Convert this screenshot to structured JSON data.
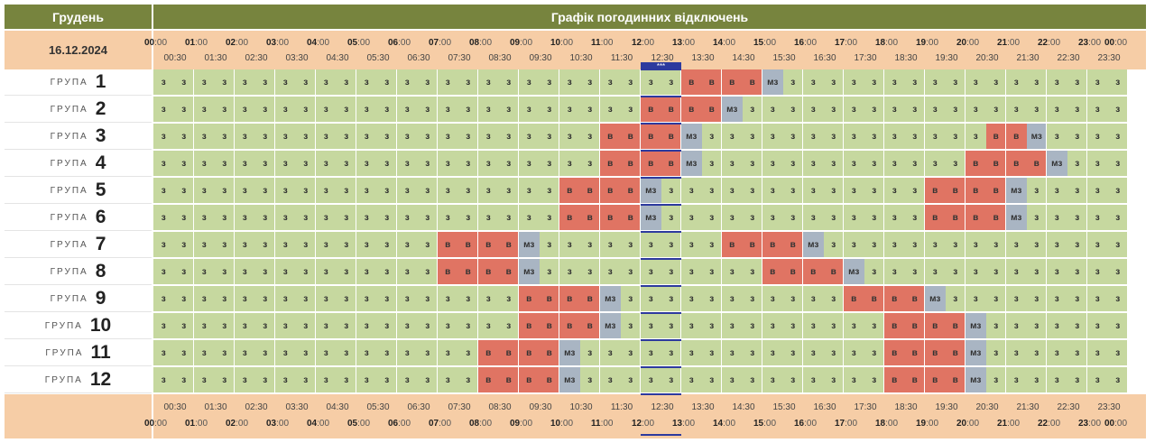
{
  "header": {
    "month": "Грудень",
    "title": "Графік погодинних відключень",
    "date": "16.12.2024"
  },
  "group_word": "ГРУПА",
  "hours": [
    "00",
    "01",
    "02",
    "03",
    "04",
    "05",
    "06",
    "07",
    "08",
    "09",
    "10",
    "11",
    "12",
    "13",
    "14",
    "15",
    "16",
    "17",
    "18",
    "19",
    "20",
    "21",
    "22",
    "23",
    "00"
  ],
  "hour_suffix": ":00",
  "half_labels": [
    "00:30",
    "01:30",
    "02:30",
    "03:30",
    "04:30",
    "05:30",
    "06:30",
    "07:30",
    "08:30",
    "09:30",
    "10:30",
    "11:30",
    "12:30",
    "13:30",
    "14:30",
    "15:30",
    "16:30",
    "17:30",
    "18:30",
    "19:30",
    "20:30",
    "21:30",
    "22:30",
    "23:30"
  ],
  "status_text": {
    "z": "з",
    "v": "в",
    "m": "мз"
  },
  "now_marker": {
    "label": "***",
    "slot_start": 24,
    "slot_count": 2
  },
  "colors": {
    "on": "#c6d89f",
    "off": "#e07463",
    "maybe": "#a9b5c3",
    "header": "#77843e",
    "band": "#f6cda6",
    "now": "#2d3a9e"
  },
  "groups": [
    {
      "number": "1",
      "slots": "zzzzzzzzzzzzzzzzzzzzzzzzzzvvvvmzzzzzzzzzzzzzzzzzzzzz"
    },
    {
      "number": "2",
      "slots": "zzzzzzzzzzzzzzzzzzzzzzzzvvvvmzzzzzzzzzzzzzzzzzzzzzzz"
    },
    {
      "number": "3",
      "slots": "zzzzzzzzzzzzzzzzzzzzzzvvvvmzzzzzzzzzzzzzzvvmzzzzzzzz"
    },
    {
      "number": "4",
      "slots": "zzzzzzzzzzzzzzzzzzzzzzvvvvmzzzzzzzzzzzzzvvvvmzzzzzzz"
    },
    {
      "number": "5",
      "slots": "zzzzzzzzzzzzzzzzzzzzvvvvmzzzzzzzzzzzzzvvvvmzzzzzzzzz"
    },
    {
      "number": "6",
      "slots": "zzzzzzzzzzzzzzzzzzzzvvvvmzzzzzzzzzzzzzvvvvmzzzzzzzzz"
    },
    {
      "number": "7",
      "slots": "zzzzzzzzzzzzzzvvvvmzzzzzzzzzvvvvmzzzzzzzzzzzzzzzzzzz"
    },
    {
      "number": "8",
      "slots": "zzzzzzzzzzzzzzvvvvmzzzzzzzzzzzvvvvmzzzzzzzzzzzzzzzzz"
    },
    {
      "number": "9",
      "slots": "zzzzzzzzzzzzzzzzzzvvvvmzzzzzzzzzzzvvvvmzzzzzzzzzzzzz"
    },
    {
      "number": "10",
      "slots": "zzzzzzzzzzzzzzzzzzvvvvmzzzzzzzzzzzzzvvvvmzzzzzzzzzzz"
    },
    {
      "number": "11",
      "slots": "zzzzzzzzzzzzzzzzvvvvmzzzzzzzzzzzzzzzvvvvmzzzzzzzzzzz"
    },
    {
      "number": "12",
      "slots": "zzzzzzzzzzzzzzzzvvvvmzzzzzzzzzzzzzzzvvvvmzzzzzzzzzzz"
    }
  ]
}
